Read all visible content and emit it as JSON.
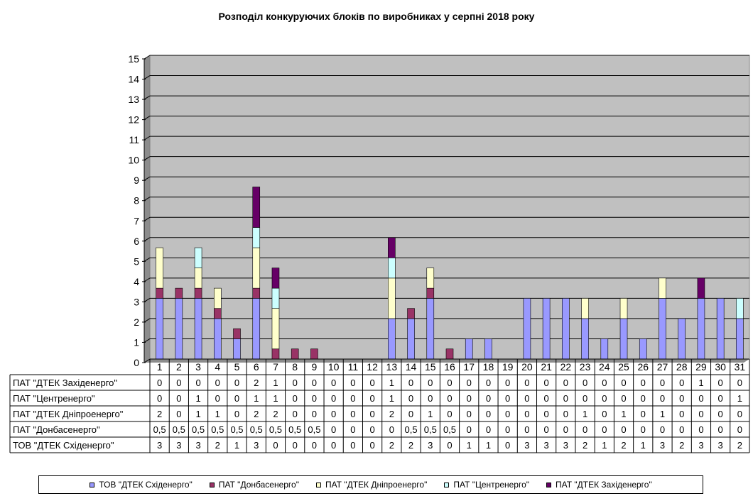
{
  "chart_data": {
    "type": "bar",
    "stacked": true,
    "title": "Розподіл конкуруючих блоків по виробниках у серпні 2018 року",
    "categories": [
      "1",
      "2",
      "3",
      "4",
      "5",
      "6",
      "7",
      "8",
      "9",
      "10",
      "11",
      "12",
      "13",
      "14",
      "15",
      "16",
      "17",
      "18",
      "19",
      "20",
      "21",
      "22",
      "23",
      "24",
      "25",
      "26",
      "27",
      "28",
      "29",
      "30",
      "31"
    ],
    "ylim": [
      0,
      15
    ],
    "yticks": [
      "0",
      "1",
      "2",
      "3",
      "4",
      "5",
      "6",
      "7",
      "8",
      "9",
      "10",
      "11",
      "12",
      "13",
      "14",
      "15"
    ],
    "grid": true,
    "legend_position": "bottom",
    "series": [
      {
        "name": "ТОВ \"ДТЕК Східенерго\"",
        "color": "#9999ff",
        "values": [
          3,
          3,
          3,
          2,
          1,
          3,
          0,
          0,
          0,
          0,
          0,
          0,
          2,
          2,
          3,
          0,
          1,
          1,
          0,
          3,
          3,
          3,
          2,
          1,
          2,
          1,
          3,
          2,
          3,
          3,
          2
        ],
        "labels": [
          "3",
          "3",
          "3",
          "2",
          "1",
          "3",
          "0",
          "0",
          "0",
          "0",
          "0",
          "0",
          "2",
          "2",
          "3",
          "0",
          "1",
          "1",
          "0",
          "3",
          "3",
          "3",
          "2",
          "1",
          "2",
          "1",
          "3",
          "2",
          "3",
          "3",
          "2"
        ]
      },
      {
        "name": "ПАТ \"Донбасенерго\"",
        "color": "#993366",
        "values": [
          0.5,
          0.5,
          0.5,
          0.5,
          0.5,
          0.5,
          0.5,
          0.5,
          0.5,
          0,
          0,
          0,
          0,
          0.5,
          0.5,
          0.5,
          0,
          0,
          0,
          0,
          0,
          0,
          0,
          0,
          0,
          0,
          0,
          0,
          0,
          0,
          0
        ],
        "labels": [
          "0,5",
          "0,5",
          "0,5",
          "0,5",
          "0,5",
          "0,5",
          "0,5",
          "0,5",
          "0,5",
          "0",
          "0",
          "0",
          "0",
          "0,5",
          "0,5",
          "0,5",
          "0",
          "0",
          "0",
          "0",
          "0",
          "0",
          "0",
          "0",
          "0",
          "0",
          "0",
          "0",
          "0",
          "0",
          "0"
        ]
      },
      {
        "name": "ПАТ \"ДТЕК Дніпроенерго\"",
        "color": "#ffffcc",
        "values": [
          2,
          0,
          1,
          1,
          0,
          2,
          2,
          0,
          0,
          0,
          0,
          0,
          2,
          0,
          1,
          0,
          0,
          0,
          0,
          0,
          0,
          0,
          1,
          0,
          1,
          0,
          1,
          0,
          0,
          0,
          0
        ],
        "labels": [
          "2",
          "0",
          "1",
          "1",
          "0",
          "2",
          "2",
          "0",
          "0",
          "0",
          "0",
          "0",
          "2",
          "0",
          "1",
          "0",
          "0",
          "0",
          "0",
          "0",
          "0",
          "0",
          "1",
          "0",
          "1",
          "0",
          "1",
          "0",
          "0",
          "0",
          "0"
        ]
      },
      {
        "name": "ПАТ \"Центренерго\"",
        "color": "#ccffff",
        "values": [
          0,
          0,
          1,
          0,
          0,
          1,
          1,
          0,
          0,
          0,
          0,
          0,
          1,
          0,
          0,
          0,
          0,
          0,
          0,
          0,
          0,
          0,
          0,
          0,
          0,
          0,
          0,
          0,
          0,
          0,
          1
        ],
        "labels": [
          "0",
          "0",
          "1",
          "0",
          "0",
          "1",
          "1",
          "0",
          "0",
          "0",
          "0",
          "0",
          "1",
          "0",
          "0",
          "0",
          "0",
          "0",
          "0",
          "0",
          "0",
          "0",
          "0",
          "0",
          "0",
          "0",
          "0",
          "0",
          "0",
          "0",
          "1"
        ]
      },
      {
        "name": "ПАТ \"ДТЕК Західенерго\"",
        "color": "#660066",
        "values": [
          0,
          0,
          0,
          0,
          0,
          2,
          1,
          0,
          0,
          0,
          0,
          0,
          1,
          0,
          0,
          0,
          0,
          0,
          0,
          0,
          0,
          0,
          0,
          0,
          0,
          0,
          0,
          0,
          1,
          0,
          0
        ],
        "labels": [
          "0",
          "0",
          "0",
          "0",
          "0",
          "2",
          "1",
          "0",
          "0",
          "0",
          "0",
          "0",
          "1",
          "0",
          "0",
          "0",
          "0",
          "0",
          "0",
          "0",
          "0",
          "0",
          "0",
          "0",
          "0",
          "0",
          "0",
          "0",
          "1",
          "0",
          "0"
        ]
      }
    ],
    "table_row_order": [
      4,
      3,
      2,
      1,
      0
    ],
    "table_row_labels": [
      "ПАТ \"ДТЕК Західенерго\"",
      "ПАТ \"Центренерго\"",
      "ПАТ \"ДТЕК Дніпроенерго\"",
      "ПАТ \"Донбасенерго\"",
      "ТОВ \"ДТЕК Східенерго\""
    ]
  }
}
